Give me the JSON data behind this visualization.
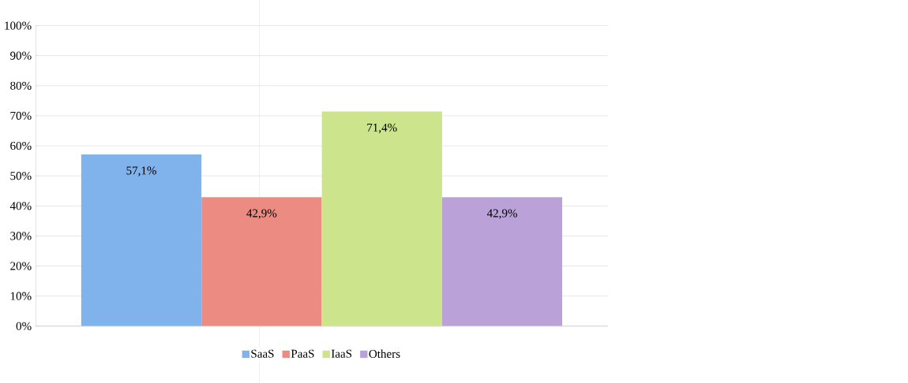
{
  "chart_data": {
    "type": "bar",
    "categories": [
      null
    ],
    "series": [
      {
        "name": "SaaS",
        "color": "#80b2ec",
        "values": [
          57.1
        ],
        "value_labels": [
          "57,1%"
        ]
      },
      {
        "name": "PaaS",
        "color": "#ec8b82",
        "values": [
          42.9
        ],
        "value_labels": [
          "42,9%"
        ]
      },
      {
        "name": "IaaS",
        "color": "#cce48c",
        "values": [
          71.4
        ],
        "value_labels": [
          "71,4%"
        ]
      },
      {
        "name": "Others",
        "color": "#baa2d9",
        "values": [
          42.9
        ],
        "value_labels": [
          "42,9%"
        ]
      }
    ],
    "ylim": [
      0,
      100
    ],
    "yticks": [
      {
        "value": 0,
        "label": "0%"
      },
      {
        "value": 10,
        "label": "10%"
      },
      {
        "value": 20,
        "label": "20%"
      },
      {
        "value": 30,
        "label": "30%"
      },
      {
        "value": 40,
        "label": "40%"
      },
      {
        "value": 50,
        "label": "50%"
      },
      {
        "value": 60,
        "label": "60%"
      },
      {
        "value": 70,
        "label": "70%"
      },
      {
        "value": 80,
        "label": "80%"
      },
      {
        "value": 90,
        "label": "90%"
      },
      {
        "value": 100,
        "label": "100%"
      }
    ],
    "grid": "y",
    "legend": "bottom"
  }
}
